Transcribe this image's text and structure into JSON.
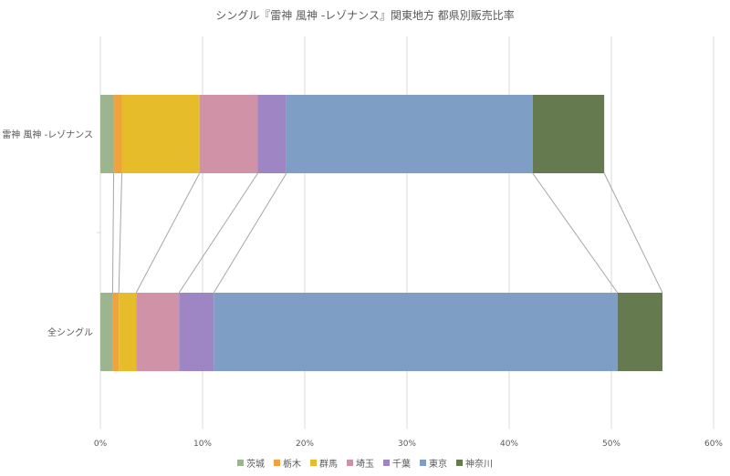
{
  "chart_data": {
    "type": "bar",
    "orientation": "horizontal",
    "stacked": true,
    "title": "シングル『雷神 風神 -レゾナンス』関東地方 都県別販売比率",
    "categories": [
      "雷神 風神 -レゾナンス",
      "全シングル"
    ],
    "xlim": [
      0,
      60
    ],
    "xticks": [
      "0%",
      "10%",
      "20%",
      "30%",
      "40%",
      "50%",
      "60%"
    ],
    "grid": true,
    "legend_position": "bottom",
    "series_lines": true,
    "series": [
      {
        "name": "茨城",
        "color": "#9db58f",
        "values": [
          1.3,
          1.2
        ]
      },
      {
        "name": "栃木",
        "color": "#f0a23c",
        "values": [
          0.8,
          0.6
        ]
      },
      {
        "name": "群馬",
        "color": "#e6bc2a",
        "values": [
          7.6,
          1.7
        ]
      },
      {
        "name": "埼玉",
        "color": "#d092a7",
        "values": [
          5.7,
          4.2
        ]
      },
      {
        "name": "千葉",
        "color": "#9e85c4",
        "values": [
          2.8,
          3.4
        ]
      },
      {
        "name": "東京",
        "color": "#7f9ec6",
        "values": [
          24.1,
          39.5
        ]
      },
      {
        "name": "神奈川",
        "color": "#667a50",
        "values": [
          7.0,
          4.4
        ]
      }
    ]
  }
}
